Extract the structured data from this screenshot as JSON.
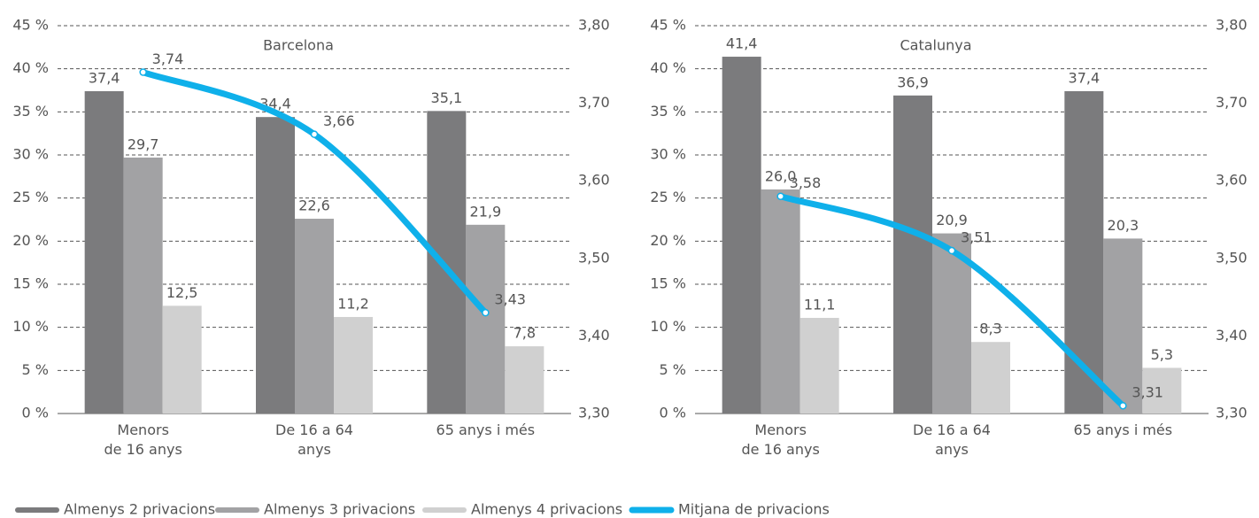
{
  "chart_data": [
    {
      "type": "bar",
      "title": "Barcelona",
      "categories": [
        "Menors\nde 16 anys",
        "De 16 a 64\nanys",
        "65 anys i més"
      ],
      "series": [
        {
          "name": "Almenys 2 privacions",
          "color": "#7b7b7d",
          "values": [
            37.4,
            34.4,
            35.1
          ],
          "value_labels": [
            "37,4",
            "34,4",
            "35,1"
          ]
        },
        {
          "name": "Almenys 3 privacions",
          "color": "#a2a2a4",
          "values": [
            29.7,
            22.6,
            21.9
          ],
          "value_labels": [
            "29,7",
            "22,6",
            "21,9"
          ]
        },
        {
          "name": "Almenys 4 privacions",
          "color": "#d0d0d0",
          "values": [
            12.5,
            11.2,
            7.8
          ],
          "value_labels": [
            "12,5",
            "11,2",
            "7,8"
          ]
        },
        {
          "name": "Mitjana de privacions",
          "color": "#0fb0ea",
          "type": "line",
          "axis": "y2",
          "values": [
            3.74,
            3.66,
            3.43
          ],
          "value_labels": [
            "3,74",
            "3,66",
            "3,43"
          ]
        }
      ],
      "ylim": [
        0,
        45
      ],
      "yticks": [
        {
          "value": 0,
          "label": "0 %"
        },
        {
          "value": 5,
          "label": "5 %"
        },
        {
          "value": 10,
          "label": "10 %"
        },
        {
          "value": 15,
          "label": "15 %"
        },
        {
          "value": 20,
          "label": "20 %"
        },
        {
          "value": 25,
          "label": "25 %"
        },
        {
          "value": 30,
          "label": "30 %"
        },
        {
          "value": 35,
          "label": "35 %"
        },
        {
          "value": 40,
          "label": "40 %"
        },
        {
          "value": 45,
          "label": "45 %"
        }
      ],
      "y2lim": [
        3.3,
        3.8
      ],
      "y2ticks": [
        {
          "value": 3.3,
          "label": "3,30"
        },
        {
          "value": 3.4,
          "label": "3,40"
        },
        {
          "value": 3.5,
          "label": "3,50"
        },
        {
          "value": 3.6,
          "label": "3,60"
        },
        {
          "value": 3.7,
          "label": "3,70"
        },
        {
          "value": 3.8,
          "label": "3,80"
        }
      ],
      "grid": true
    },
    {
      "type": "bar",
      "title": "Catalunya",
      "categories": [
        "Menors\nde 16 anys",
        "De 16 a 64\nanys",
        "65 anys i més"
      ],
      "series": [
        {
          "name": "Almenys 2 privacions",
          "color": "#7b7b7d",
          "values": [
            41.4,
            36.9,
            37.4
          ],
          "value_labels": [
            "41,4",
            "36,9",
            "37,4"
          ]
        },
        {
          "name": "Almenys 3 privacions",
          "color": "#a2a2a4",
          "values": [
            26.0,
            20.9,
            20.3
          ],
          "value_labels": [
            "26,0",
            "20,9",
            "20,3"
          ]
        },
        {
          "name": "Almenys 4 privacions",
          "color": "#d0d0d0",
          "values": [
            11.1,
            8.3,
            5.3
          ],
          "value_labels": [
            "11,1",
            "8,3",
            "5,3"
          ]
        },
        {
          "name": "Mitjana de privacions",
          "color": "#0fb0ea",
          "type": "line",
          "axis": "y2",
          "values": [
            3.58,
            3.51,
            3.31
          ],
          "value_labels": [
            "3,58",
            "3,51",
            "3,31"
          ]
        }
      ],
      "ylim": [
        0,
        45
      ],
      "yticks": [
        {
          "value": 0,
          "label": "0 %"
        },
        {
          "value": 5,
          "label": "5 %"
        },
        {
          "value": 10,
          "label": "10 %"
        },
        {
          "value": 15,
          "label": "15 %"
        },
        {
          "value": 20,
          "label": "20 %"
        },
        {
          "value": 25,
          "label": "25 %"
        },
        {
          "value": 30,
          "label": "30 %"
        },
        {
          "value": 35,
          "label": "35 %"
        },
        {
          "value": 40,
          "label": "40 %"
        },
        {
          "value": 45,
          "label": "45 %"
        }
      ],
      "y2lim": [
        3.3,
        3.8
      ],
      "y2ticks": [
        {
          "value": 3.3,
          "label": "3,30"
        },
        {
          "value": 3.4,
          "label": "3,40"
        },
        {
          "value": 3.5,
          "label": "3,50"
        },
        {
          "value": 3.6,
          "label": "3,60"
        },
        {
          "value": 3.7,
          "label": "3,70"
        },
        {
          "value": 3.8,
          "label": "3,80"
        }
      ],
      "grid": true
    }
  ]
}
